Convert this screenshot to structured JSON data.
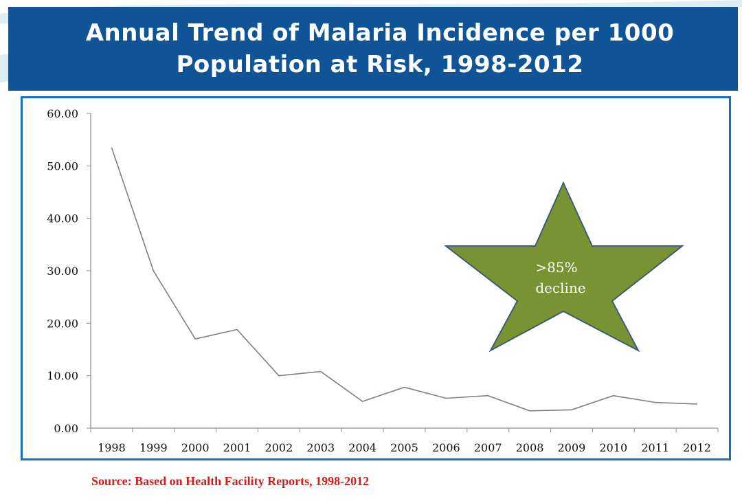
{
  "colors": {
    "banner": "#0f5496",
    "frame": "#1a6fb8",
    "line": "#7f7f7f",
    "star_fill": "#7a9332",
    "star_stroke": "#3d5a78",
    "source_text": "#d81b1b"
  },
  "title": {
    "line1": "Annual Trend of Malaria Incidence per 1000",
    "line2": "Population at Risk, 1998-2012"
  },
  "annotation": {
    "line1": ">85%",
    "line2": "decline",
    "shape": "star"
  },
  "source": "Source: Based on Health Facility Reports, 1998-2012",
  "chart_data": {
    "type": "line",
    "title": "Annual Trend of Malaria Incidence per 1000 Population at Risk, 1998-2012",
    "xlabel": "",
    "ylabel": "",
    "categories": [
      "1998",
      "1999",
      "2000",
      "2001",
      "2002",
      "2003",
      "2004",
      "2005",
      "2006",
      "2007",
      "2008",
      "2009",
      "2010",
      "2011",
      "2012"
    ],
    "values": [
      53.5,
      30.0,
      17.0,
      18.8,
      10.0,
      10.8,
      5.1,
      7.8,
      5.7,
      6.2,
      3.3,
      3.5,
      6.2,
      4.9,
      4.6
    ],
    "ylim": [
      0,
      60
    ],
    "yticks": [
      "0.00",
      "10.00",
      "20.00",
      "30.00",
      "40.00",
      "50.00",
      "60.00"
    ],
    "grid": false,
    "legend": "none"
  }
}
